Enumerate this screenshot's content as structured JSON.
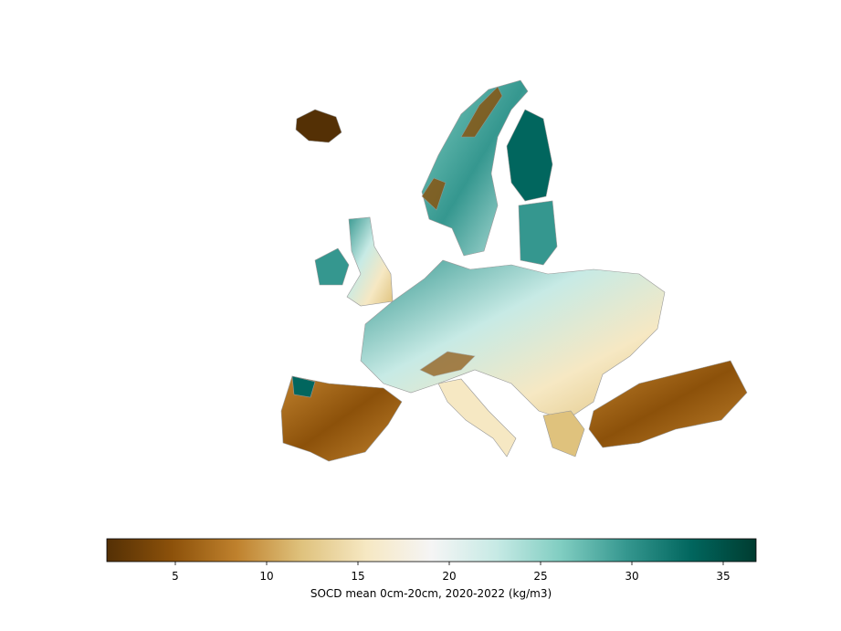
{
  "chart_data": {
    "type": "map",
    "colorbar_label": "SOCD mean 0cm-20cm, 2020-2022 (kg/m3)",
    "clim": [
      1.25,
      36.8
    ],
    "ticks": [
      5,
      10,
      15,
      20,
      25,
      30,
      35
    ],
    "colormap": "BrBG",
    "colors": [
      "#543005",
      "#8c510a",
      "#bf812d",
      "#dfc27d",
      "#f6e8c3",
      "#f5f5f5",
      "#c7eae5",
      "#80cdc1",
      "#35978f",
      "#01665e",
      "#003c30"
    ]
  }
}
